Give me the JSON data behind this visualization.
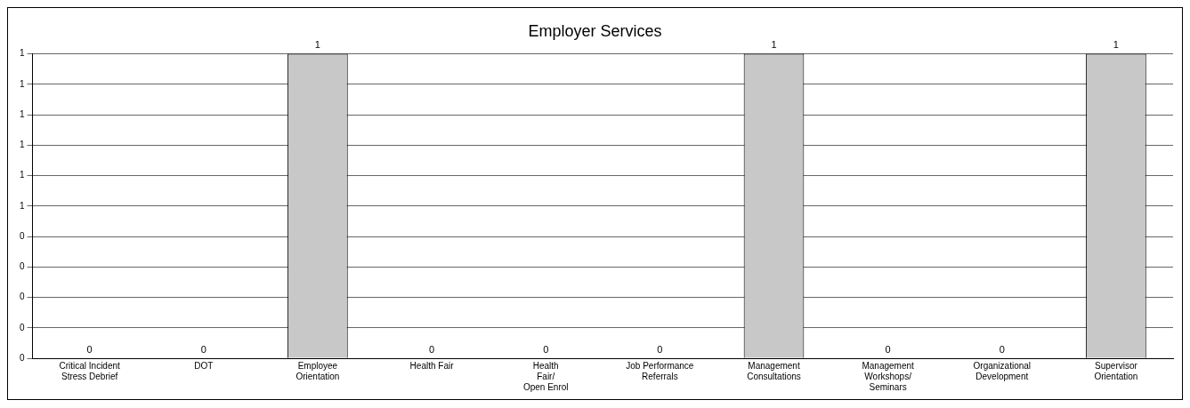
{
  "chart_data": {
    "type": "bar",
    "title": "Employer Services",
    "categories": [
      "Critical Incident\nStress Debrief",
      "DOT",
      "Employee\nOrientation",
      "Health Fair",
      "Health\nFair/\nOpen Enrol",
      "Job Performance\nReferrals",
      "Management\nConsultations",
      "Management\nWorkshops/\nSeminars",
      "Organizational\nDevelopment",
      "Supervisor\nOrientation"
    ],
    "values": [
      0,
      0,
      1,
      0,
      0,
      0,
      1,
      0,
      0,
      1
    ],
    "color": "#c8c8c8",
    "ylim": [
      0,
      1
    ],
    "yticks": [
      0,
      {
        "value": 0.1,
        "label": "0"
      },
      {
        "value": 0.2,
        "label": "0"
      },
      {
        "value": 0.3,
        "label": "0"
      },
      {
        "value": 0.4,
        "label": "0"
      },
      {
        "value": 0.5,
        "label": "1"
      },
      {
        "value": 0.6,
        "label": "1"
      },
      {
        "value": 0.7,
        "label": "1"
      },
      {
        "value": 0.8,
        "label": "1"
      },
      {
        "value": 0.9,
        "label": "1"
      },
      1
    ],
    "grid": "y",
    "data_labels": true,
    "legend": false
  }
}
